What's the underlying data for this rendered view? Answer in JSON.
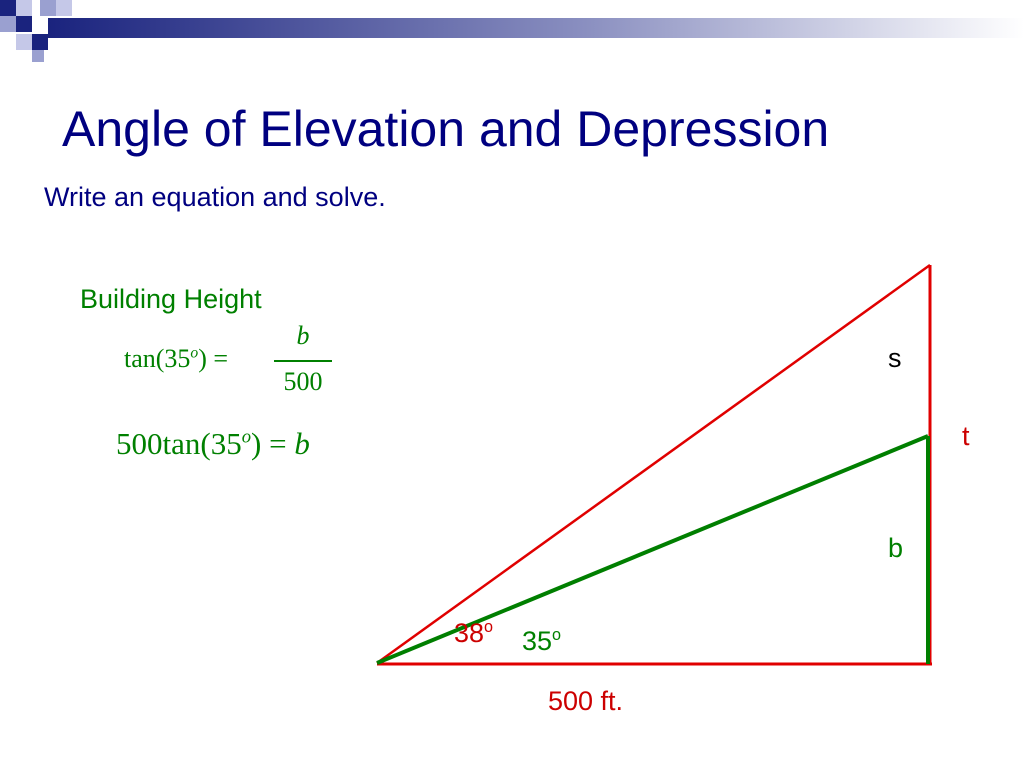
{
  "slide": {
    "title": "Angle of Elevation and Depression",
    "subtitle": "Write an equation and solve."
  },
  "solution": {
    "heading": "Building Height",
    "equation1": {
      "lhs_func": "tan(35",
      "lhs_deg": "o",
      "lhs_close": ")",
      "equals": "=",
      "numerator": "b",
      "denominator": "500"
    },
    "equation2": {
      "coef": "500",
      "func": "tan(35",
      "deg": "o",
      "close": ")",
      "equals": "=",
      "rhs": "b"
    }
  },
  "diagram": {
    "label_s": "s",
    "label_t": "t",
    "label_b": "b",
    "angle_outer": "38",
    "angle_inner": "35",
    "degree_mark": "o",
    "base_label": "500 ft.",
    "colors": {
      "outer": "#e00000",
      "inner": "#007f00",
      "title": "#000080"
    }
  }
}
